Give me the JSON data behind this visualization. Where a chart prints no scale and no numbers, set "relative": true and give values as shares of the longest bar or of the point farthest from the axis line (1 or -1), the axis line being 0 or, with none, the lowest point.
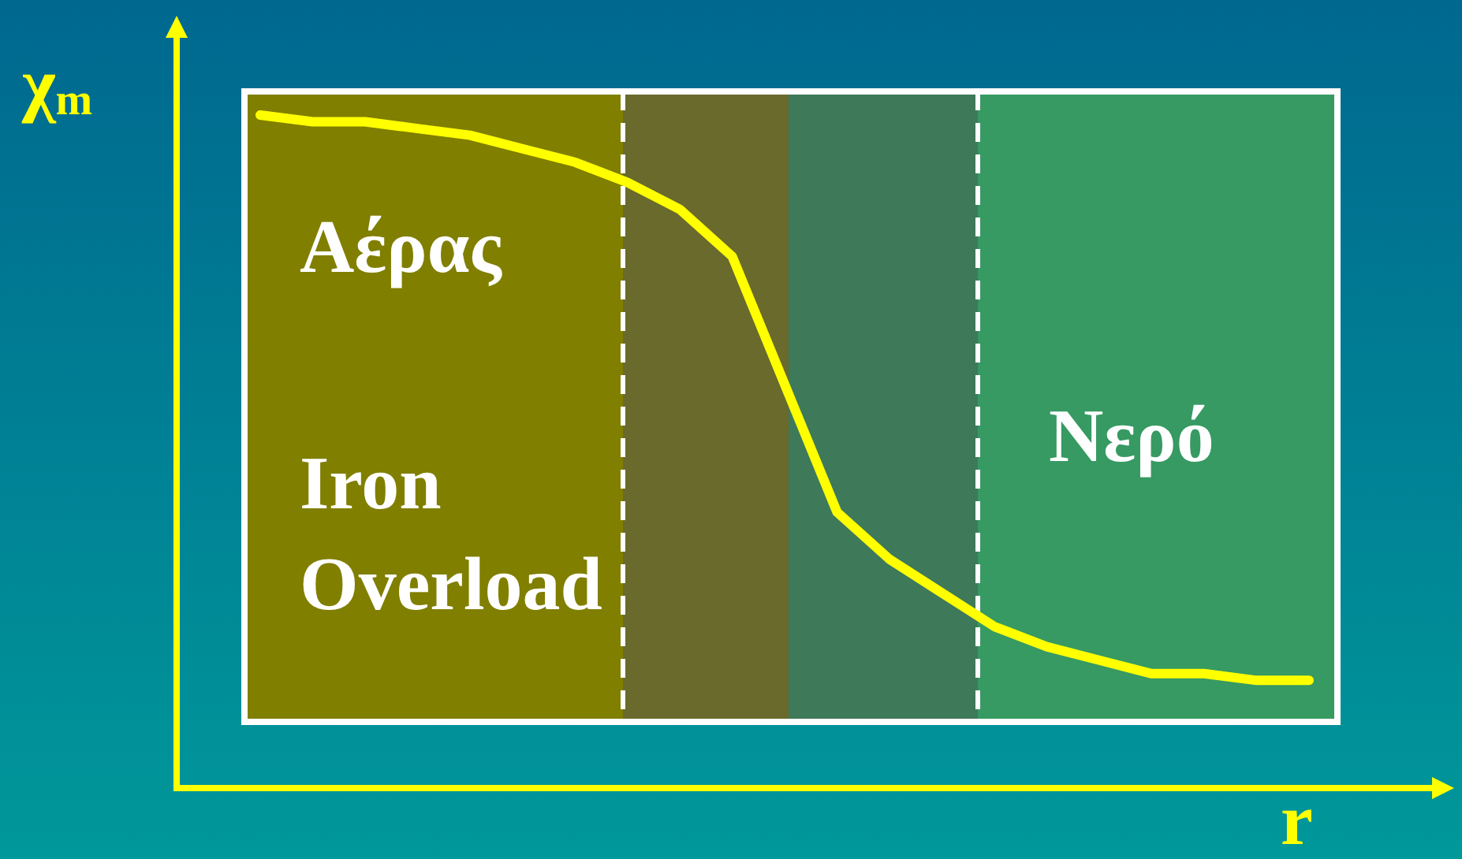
{
  "chart_data": {
    "type": "line",
    "relative": true,
    "xlabel": "r",
    "ylabel": "χ$_{m}$",
    "categories": [
      null,
      null,
      null,
      null,
      null,
      null,
      null,
      null,
      null,
      null,
      null,
      null,
      null,
      null,
      null,
      null,
      null,
      null,
      null,
      null,
      null
    ],
    "series": [
      {
        "color": "#ffff00",
        "values": [
          1.0,
          0.99,
          0.99,
          0.98,
          0.97,
          0.95,
          0.93,
          0.9,
          0.86,
          0.79,
          0.6,
          0.41,
          0.34,
          0.29,
          0.24,
          0.21,
          0.19,
          0.17,
          0.17,
          0.16,
          0.16
        ]
      }
    ],
    "annotations": [
      "Αέρας",
      "Iron Overload",
      "Νερό"
    ]
  }
}
